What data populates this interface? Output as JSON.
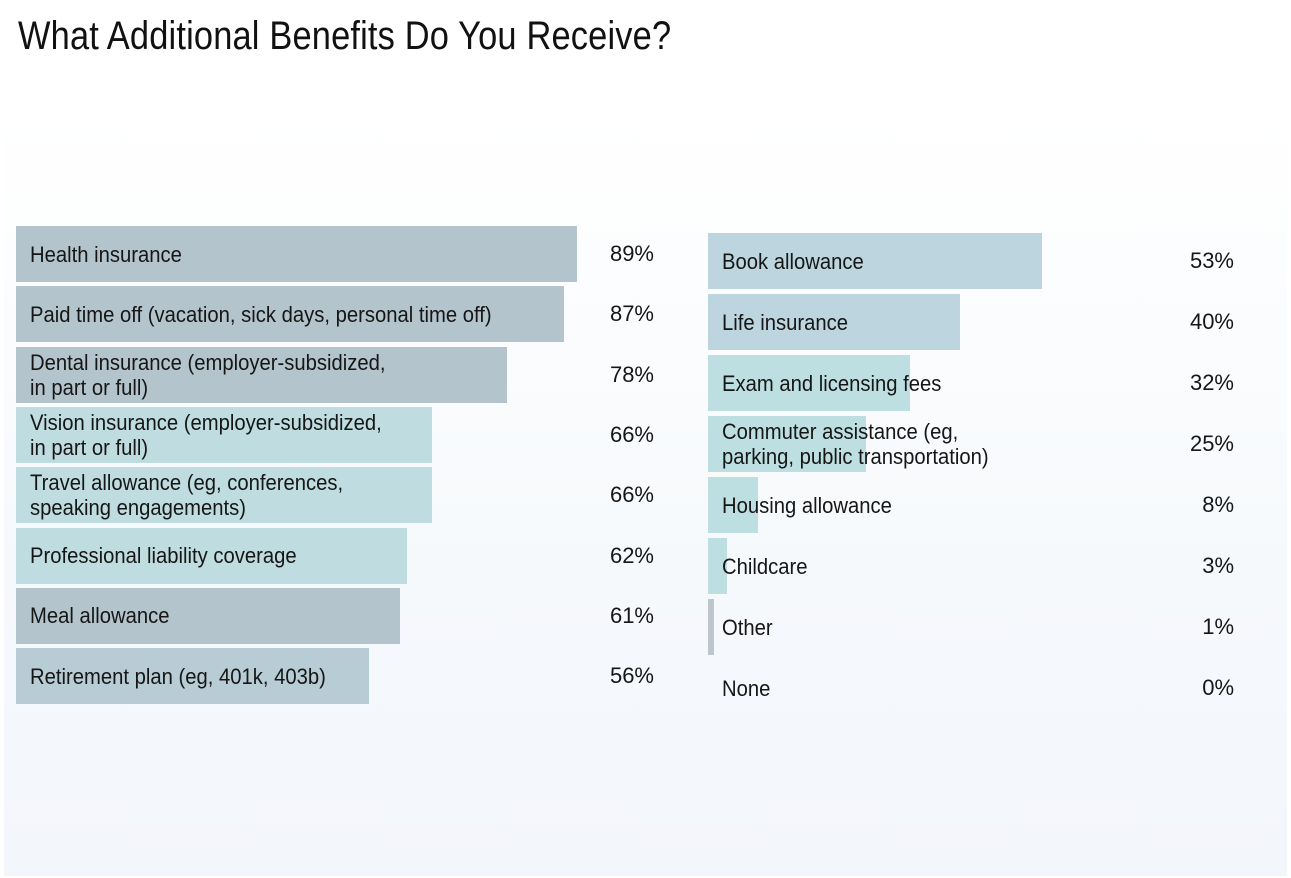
{
  "chart_data": [
    {
      "type": "bar",
      "title": "What Additional Benefits Do You Receive?",
      "orientation": "horizontal",
      "xlim": [
        0,
        100
      ],
      "categories": [
        "Health insurance",
        "Paid time off (vacation, sick days, personal time off)",
        "Dental insurance (employer-subsidized,\nin part or full)",
        "Vision insurance (employer-subsidized,\nin part or full)",
        "Travel allowance (eg, conferences,\nspeaking engagements)",
        "Professional liability coverage",
        "Meal allowance",
        "Retirement plan (eg, 401k, 403b)"
      ],
      "values": [
        89,
        87,
        78,
        66,
        66,
        62,
        61,
        56
      ],
      "value_labels": [
        "89%",
        "87%",
        "78%",
        "66%",
        "66%",
        "62%",
        "61%",
        "56%"
      ],
      "bar_colors": [
        "#b3c4cd",
        "#b3c4cd",
        "#b3c4cd",
        "#bfdde0",
        "#bfdde0",
        "#bfdde0",
        "#b3c4cd",
        "#b8ccd6"
      ]
    },
    {
      "type": "bar",
      "orientation": "horizontal",
      "xlim": [
        0,
        100
      ],
      "categories": [
        "Book allowance",
        "Life insurance",
        "Exam and licensing fees",
        "Commuter assistance (eg,\nparking, public transportation)",
        "Housing allowance",
        "Childcare",
        "Other",
        "None"
      ],
      "values": [
        53,
        40,
        32,
        25,
        8,
        3,
        1,
        0
      ],
      "value_labels": [
        "53%",
        "40%",
        "32%",
        "25%",
        "8%",
        "3%",
        "1%",
        "0%"
      ],
      "bar_colors": [
        "#bcd5de",
        "#bcd5de",
        "#bddfe2",
        "#bddfe2",
        "#bddfe2",
        "#bddfe2",
        "#bcc6cc",
        "#bcc6cc"
      ]
    }
  ]
}
